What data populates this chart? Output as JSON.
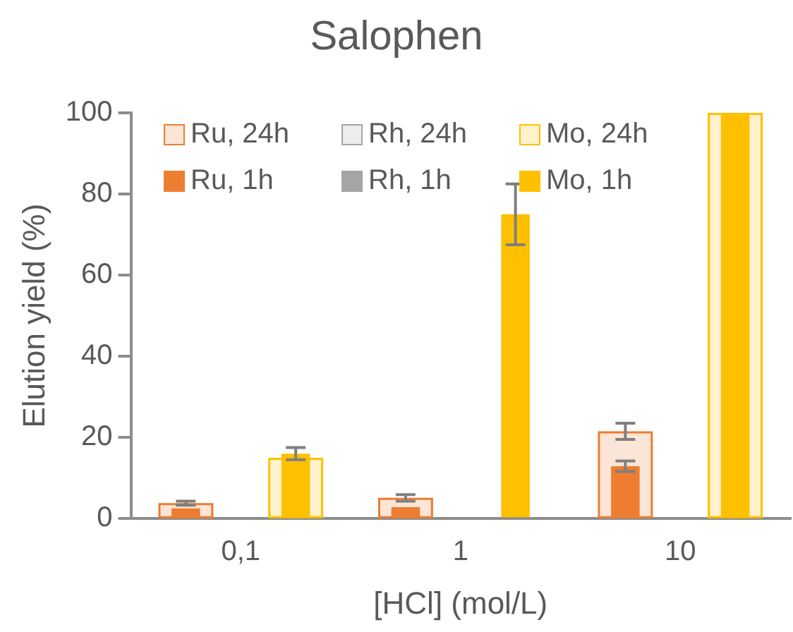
{
  "chart_data": {
    "type": "bar",
    "title": "Salophen",
    "xlabel": "[HCl] (mol/L)",
    "ylabel": "Elution yield (%)",
    "categories": [
      "0,1",
      "1",
      "10"
    ],
    "series": [
      {
        "name": "Ru, 24h",
        "color": "#fbe5d6",
        "values": [
          3.8,
          5.1,
          21.5
        ],
        "errors": [
          0.5,
          0.8,
          2
        ]
      },
      {
        "name": "Rh, 24h",
        "color": "#ededed",
        "values": [
          0,
          0,
          0
        ]
      },
      {
        "name": "Mo, 24h",
        "color": "#fff2cc",
        "values": [
          15,
          0,
          100
        ]
      },
      {
        "name": "Ru, 1h",
        "color": "#ed7d31",
        "values": [
          2.5,
          2.8,
          12.9
        ],
        "errors": [
          null,
          null,
          1.3
        ]
      },
      {
        "name": "Rh, 1h",
        "color": "#a5a5a5",
        "values": [
          0,
          0,
          0
        ]
      },
      {
        "name": "Mo, 1h",
        "color": "#ffc000",
        "values": [
          16,
          75,
          100
        ],
        "errors": [
          1.5,
          7.5,
          null
        ]
      }
    ],
    "ylim": [
      0,
      100
    ],
    "yticks": [
      0,
      20,
      40,
      60,
      80,
      100
    ],
    "grid": false,
    "legend": "top"
  }
}
